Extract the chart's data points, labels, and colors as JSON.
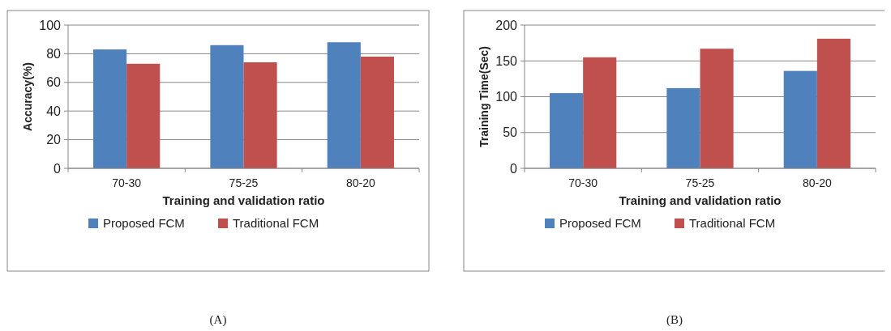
{
  "chart_data": [
    {
      "type": "bar",
      "xlabel": "Training and validation ratio",
      "ylabel": "Accuracy(%)",
      "categories": [
        "70-30",
        "75-25",
        "80-20"
      ],
      "series": [
        {
          "name": "Proposed FCM",
          "color": "#4f81bd",
          "values": [
            83,
            86,
            88
          ]
        },
        {
          "name": "Traditional FCM",
          "color": "#c0504d",
          "values": [
            73,
            74,
            78
          ]
        }
      ],
      "ylim": [
        0,
        100
      ],
      "yticks": [
        0,
        20,
        40,
        60,
        80,
        100
      ],
      "grid": "y",
      "legend": "bottom",
      "annotations": [
        "(A)"
      ]
    },
    {
      "type": "bar",
      "xlabel": "Training and validation ratio",
      "ylabel": "Training Time(Sec)",
      "categories": [
        "70-30",
        "75-25",
        "80-20"
      ],
      "series": [
        {
          "name": "Proposed FCM",
          "color": "#4f81bd",
          "values": [
            105,
            112,
            136
          ]
        },
        {
          "name": "Traditional FCM",
          "color": "#c0504d",
          "values": [
            155,
            167,
            181
          ]
        }
      ],
      "ylim": [
        0,
        200
      ],
      "yticks": [
        0,
        50,
        100,
        150,
        200
      ],
      "grid": "y",
      "legend": "bottom",
      "annotations": [
        "(B)"
      ]
    }
  ]
}
